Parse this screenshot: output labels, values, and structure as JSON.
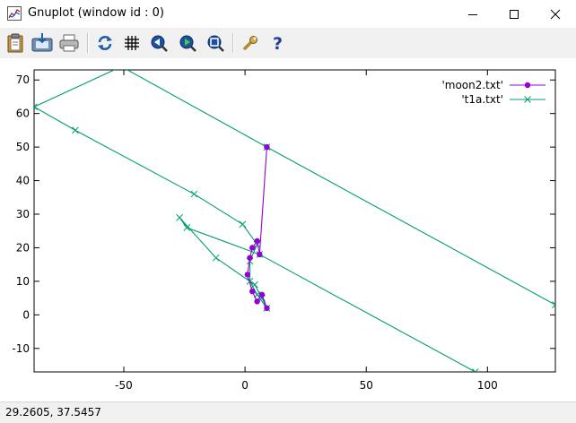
{
  "window": {
    "title": "Gnuplot (window id : 0)",
    "minimize_icon": "minimize-icon",
    "maximize_icon": "maximize-icon",
    "close_icon": "close-icon"
  },
  "toolbar": {
    "buttons": [
      {
        "name": "copy-clipboard-button",
        "icon": "clipboard-icon"
      },
      {
        "name": "save-button",
        "icon": "save-icon"
      },
      {
        "name": "print-button",
        "icon": "printer-icon"
      },
      {
        "name": "replot-button",
        "icon": "refresh-icon"
      },
      {
        "name": "grid-button",
        "icon": "grid-icon"
      },
      {
        "name": "previous-zoom-button",
        "icon": "zoom-previous-icon"
      },
      {
        "name": "next-zoom-button",
        "icon": "zoom-next-icon"
      },
      {
        "name": "autoscale-button",
        "icon": "autoscale-icon"
      },
      {
        "name": "options-button",
        "icon": "wrench-icon"
      },
      {
        "name": "help-button",
        "icon": "help-icon"
      }
    ]
  },
  "status": {
    "coordinates": "29.2605,  37.5457"
  },
  "chart_data": {
    "type": "line",
    "title": "",
    "xlabel": "",
    "ylabel": "",
    "xlim": [
      -87,
      128
    ],
    "ylim": [
      -17,
      73
    ],
    "xticks": [
      -50,
      0,
      50,
      100
    ],
    "xtick_labels": [
      "-50",
      "0",
      "50",
      "100"
    ],
    "yticks": [
      -10,
      0,
      10,
      20,
      30,
      40,
      50,
      60,
      70
    ],
    "ytick_labels": [
      "-10",
      "0",
      "10",
      "20",
      "30",
      "40",
      "50",
      "60",
      "70"
    ],
    "grid": false,
    "legend_position": "top-right",
    "series": [
      {
        "name": "'moon2.txt'",
        "color": "#9400d3",
        "marker": "circle",
        "points": [
          [
            9,
            50
          ],
          [
            6,
            18
          ],
          [
            5,
            22
          ],
          [
            3,
            20
          ],
          [
            2,
            17
          ],
          [
            1,
            12
          ],
          [
            3,
            7
          ],
          [
            5,
            4
          ],
          [
            7,
            6
          ],
          [
            9,
            2
          ]
        ]
      },
      {
        "name": "'t1a.txt'",
        "color": "#009e73",
        "marker": "cross",
        "points": [
          [
            128,
            3
          ],
          [
            9,
            50
          ],
          [
            -51,
            74
          ],
          [
            -51,
            74
          ],
          [
            -87,
            62
          ],
          [
            -70,
            55
          ],
          [
            -21,
            36
          ],
          [
            -1,
            27
          ],
          [
            5,
            21
          ],
          [
            2,
            16
          ],
          [
            2,
            10
          ],
          [
            5,
            6
          ],
          [
            9,
            2
          ],
          [
            7,
            5
          ],
          [
            4,
            9
          ],
          [
            -12,
            17
          ],
          [
            -27,
            29
          ],
          [
            -24,
            26
          ],
          [
            6,
            18
          ],
          [
            95,
            -17
          ]
        ]
      }
    ]
  }
}
